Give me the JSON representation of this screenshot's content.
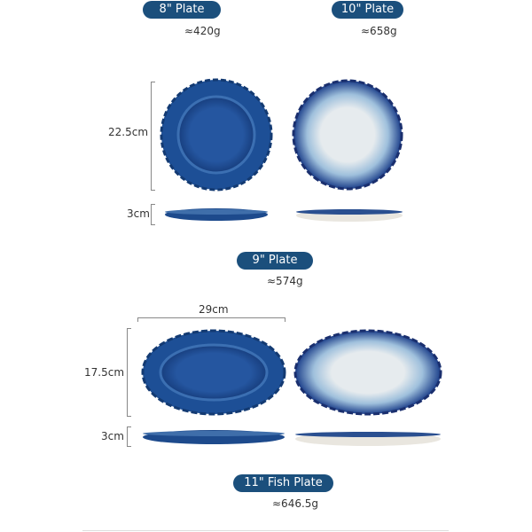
{
  "plates": [
    {
      "name": "8\" Plate",
      "weight": "≈420g"
    },
    {
      "name": "10\" Plate",
      "weight": "≈658g"
    },
    {
      "name": "9\" Plate",
      "weight": "≈574g"
    },
    {
      "name": "11\" Fish Plate",
      "weight": "≈646.5g"
    }
  ],
  "dimensions": {
    "round_diameter": "22.5cm",
    "round_height": "3cm",
    "fish_length": "29cm",
    "fish_width": "17.5cm",
    "fish_height": "3cm"
  },
  "colors": {
    "pill": "#1b4f7c",
    "glaze_dark": "#1f4f9a",
    "glaze_light": "#e6ebee"
  }
}
